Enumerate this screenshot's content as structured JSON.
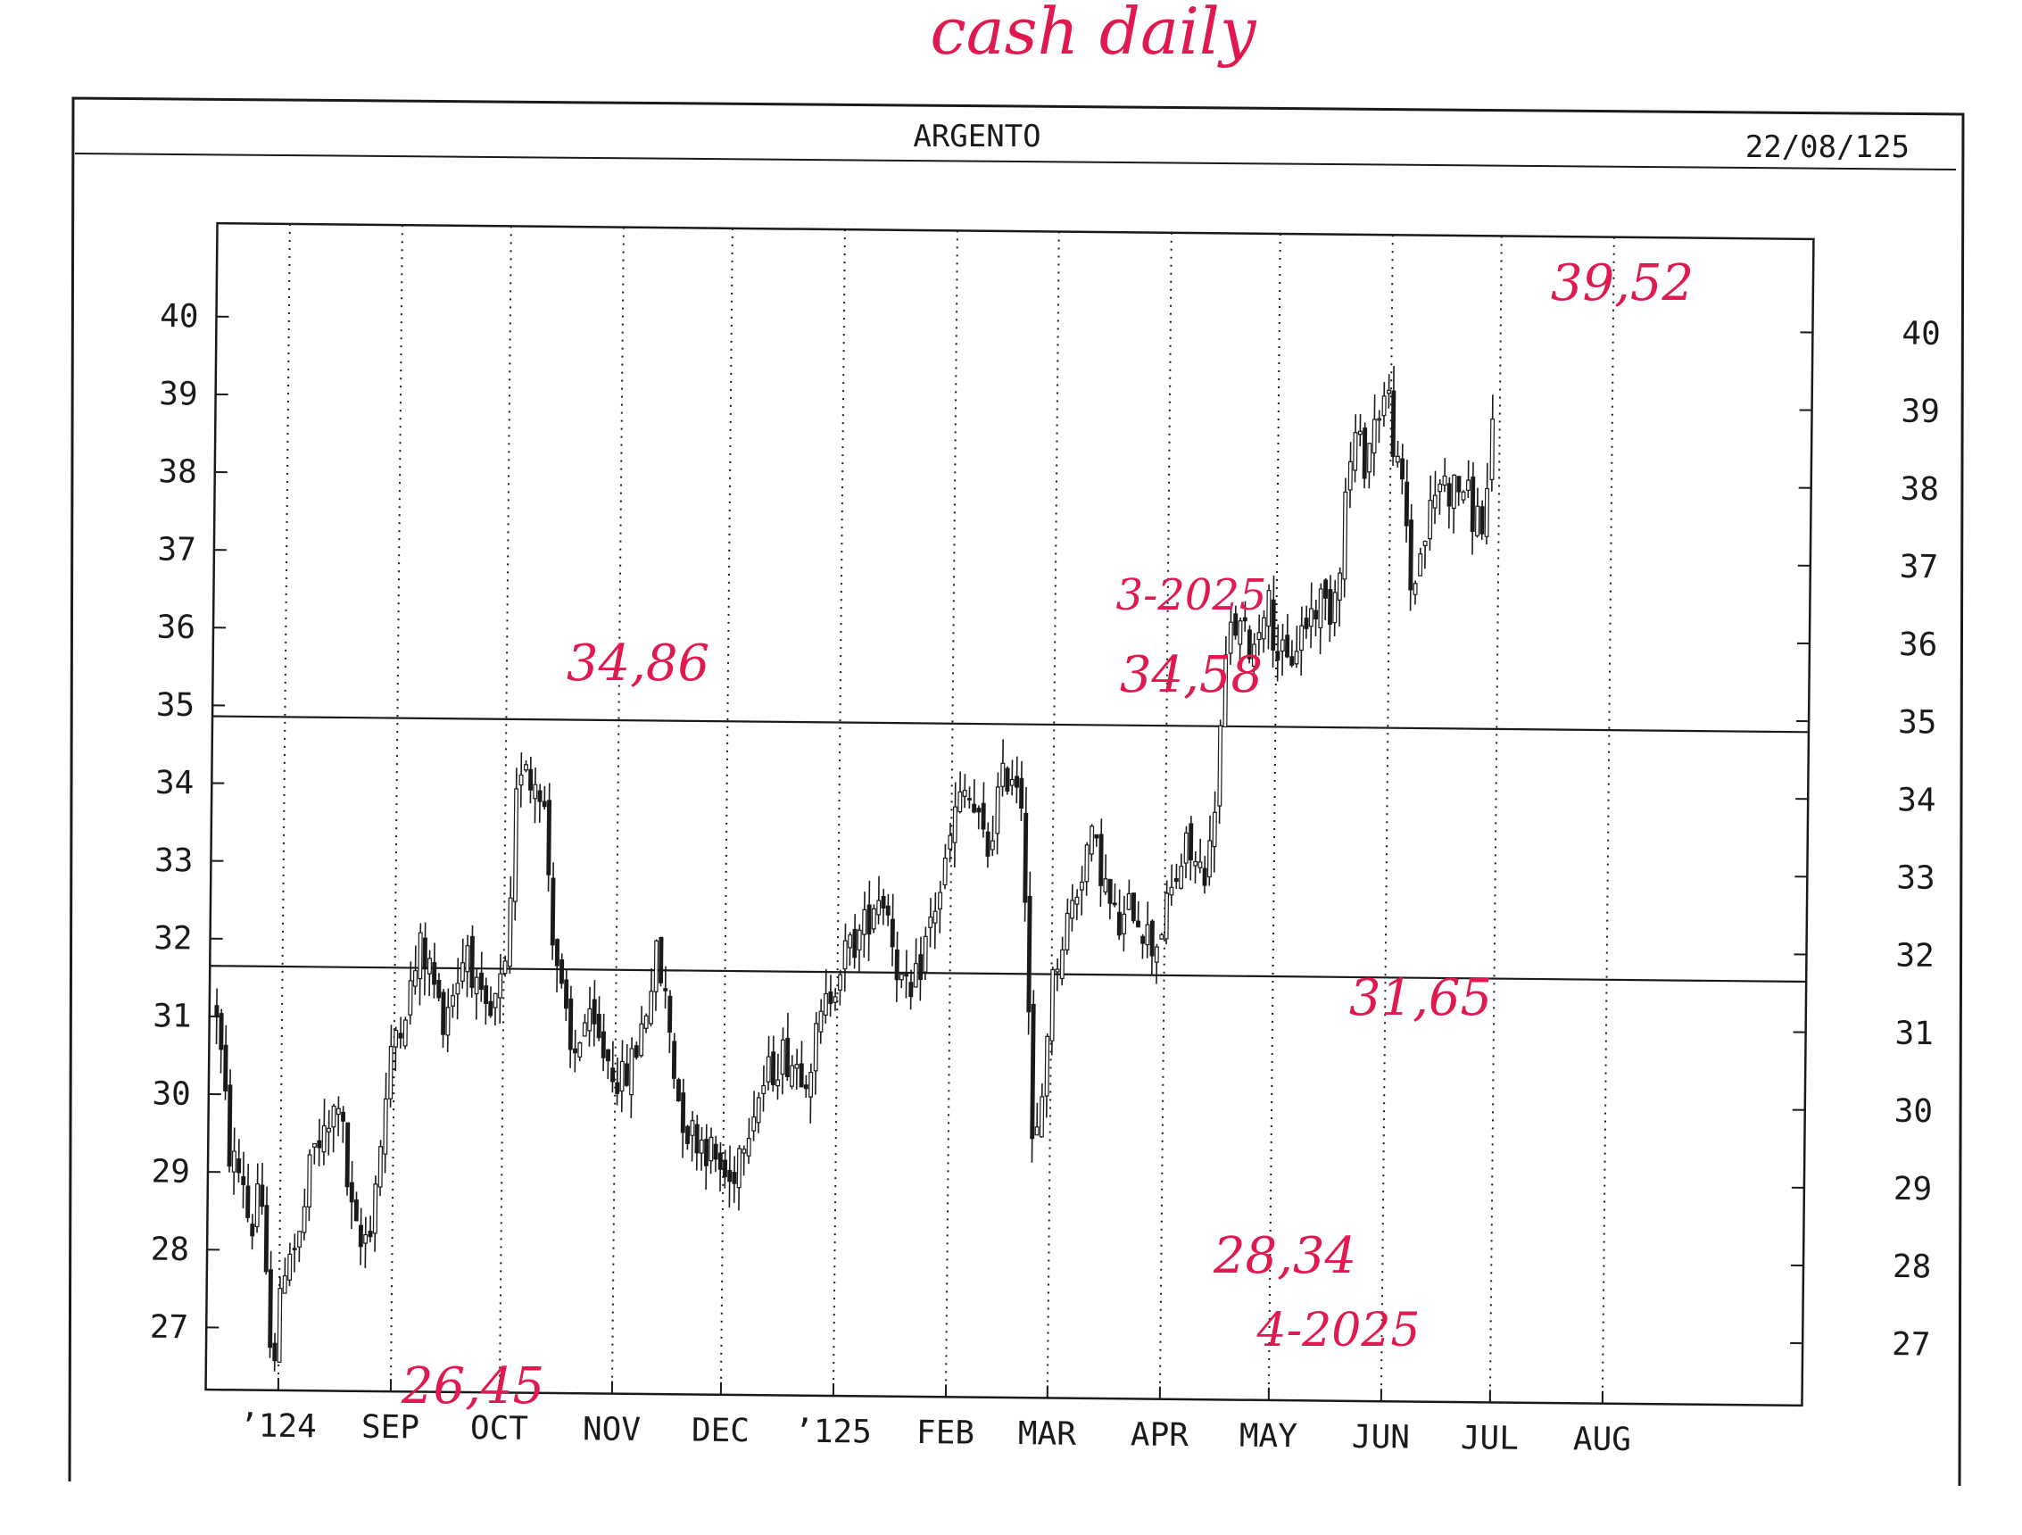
{
  "header": {
    "handwritten_title": "cash daily",
    "instrument": "ARGENTO",
    "date": "22/08/125"
  },
  "annotations": [
    {
      "text": "26,45"
    },
    {
      "text": "34,86"
    },
    {
      "text": "3-2025"
    },
    {
      "text": "34,58"
    },
    {
      "text": "31,65"
    },
    {
      "text": "28,34"
    },
    {
      "text": "4-2025"
    },
    {
      "text": "39,52"
    }
  ],
  "colors": {
    "ink": "#1a1a1a",
    "annotation": "#e0194f",
    "grid": "#333333"
  },
  "chart_data": {
    "type": "candlestick",
    "title": "ARGENTO",
    "subtitle": "cash daily",
    "date_label": "22/08/125",
    "xlabel": "",
    "ylabel": "",
    "ylim": [
      26.2,
      41.2
    ],
    "y_ticks_left": [
      "27",
      "28",
      "29",
      "30",
      "31",
      "32",
      "33",
      "34",
      "35",
      "36",
      "37",
      "38",
      "39",
      "40"
    ],
    "y_ticks_right": [
      "27",
      "28",
      "29",
      "30",
      "31",
      "32",
      "33",
      "34",
      "35",
      "36",
      "37",
      "38",
      "39",
      "40"
    ],
    "x_ticks": [
      {
        "label": "’124",
        "t": 0
      },
      {
        "label": "SEP",
        "t": 31
      },
      {
        "label": "OCT",
        "t": 61
      },
      {
        "label": "NOV",
        "t": 92
      },
      {
        "label": "DEC",
        "t": 122
      },
      {
        "label": "’125",
        "t": 153
      },
      {
        "label": "FEB",
        "t": 184
      },
      {
        "label": "MAR",
        "t": 212
      },
      {
        "label": "APR",
        "t": 243
      },
      {
        "label": "MAY",
        "t": 273
      },
      {
        "label": "JUN",
        "t": 304
      },
      {
        "label": "JUL",
        "t": 334
      },
      {
        "label": "AUG",
        "t": 365
      }
    ],
    "t_range": [
      -20,
      420
    ],
    "grid": "vertical-dotted",
    "horizontal_lines": [
      34.86,
      31.65
    ],
    "annotated_levels": [
      {
        "label": "26,45",
        "t": 28,
        "value": 26.45
      },
      {
        "label": "34,86",
        "t": 87,
        "value": 34.86
      },
      {
        "label": "34,58",
        "t": 238,
        "value": 34.58
      },
      {
        "label": "31,65",
        "t": 285,
        "value": 31.65
      },
      {
        "label": "28,34",
        "t": 247,
        "value": 28.34
      },
      {
        "label": "39,52",
        "t": 369,
        "value": 39.52
      }
    ],
    "price_path": [
      [
        -18,
        31.1
      ],
      [
        -14,
        29.2
      ],
      [
        -10,
        28.9
      ],
      [
        -8,
        28.1
      ],
      [
        -6,
        29.0
      ],
      [
        -3,
        27.1
      ],
      [
        -1,
        26.7
      ],
      [
        2,
        28.1
      ],
      [
        5,
        28.0
      ],
      [
        9,
        29.3
      ],
      [
        13,
        29.5
      ],
      [
        16,
        30.0
      ],
      [
        19,
        28.6
      ],
      [
        22,
        28.0
      ],
      [
        25,
        28.4
      ],
      [
        28,
        29.6
      ],
      [
        31,
        30.8
      ],
      [
        35,
        31.3
      ],
      [
        38,
        31.9
      ],
      [
        41,
        31.6
      ],
      [
        44,
        31.0
      ],
      [
        48,
        31.5
      ],
      [
        51,
        32.0
      ],
      [
        54,
        31.2
      ],
      [
        57,
        30.9
      ],
      [
        60,
        31.4
      ],
      [
        62,
        31.6
      ],
      [
        64,
        33.8
      ],
      [
        66,
        34.6
      ],
      [
        68,
        34.0
      ],
      [
        70,
        34.2
      ],
      [
        72,
        33.6
      ],
      [
        74,
        32.3
      ],
      [
        77,
        31.3
      ],
      [
        80,
        30.4
      ],
      [
        83,
        31.0
      ],
      [
        86,
        30.8
      ],
      [
        90,
        30.5
      ],
      [
        94,
        30.2
      ],
      [
        97,
        30.5
      ],
      [
        100,
        31.1
      ],
      [
        103,
        31.8
      ],
      [
        106,
        31.2
      ],
      [
        109,
        30.1
      ],
      [
        112,
        29.6
      ],
      [
        116,
        29.5
      ],
      [
        120,
        29.2
      ],
      [
        124,
        28.9
      ],
      [
        127,
        29.5
      ],
      [
        130,
        29.9
      ],
      [
        134,
        30.3
      ],
      [
        138,
        30.6
      ],
      [
        141,
        30.5
      ],
      [
        145,
        30.4
      ],
      [
        148,
        30.9
      ],
      [
        151,
        31.4
      ],
      [
        154,
        31.8
      ],
      [
        157,
        32.0
      ],
      [
        160,
        32.2
      ],
      [
        163,
        32.6
      ],
      [
        165,
        32.7
      ],
      [
        167,
        32.4
      ],
      [
        170,
        31.6
      ],
      [
        173,
        31.2
      ],
      [
        176,
        31.8
      ],
      [
        179,
        32.4
      ],
      [
        182,
        32.9
      ],
      [
        185,
        33.7
      ],
      [
        188,
        34.0
      ],
      [
        191,
        33.6
      ],
      [
        194,
        33.2
      ],
      [
        197,
        34.0
      ],
      [
        200,
        34.3
      ],
      [
        203,
        34.1
      ],
      [
        205,
        32.4
      ],
      [
        207,
        29.4
      ],
      [
        209,
        29.6
      ],
      [
        211,
        31.0
      ],
      [
        213,
        31.8
      ],
      [
        216,
        32.3
      ],
      [
        219,
        32.8
      ],
      [
        222,
        33.4
      ],
      [
        225,
        33.1
      ],
      [
        228,
        32.5
      ],
      [
        231,
        32.2
      ],
      [
        234,
        32.6
      ],
      [
        237,
        32.3
      ],
      [
        240,
        32.0
      ],
      [
        243,
        32.4
      ],
      [
        246,
        32.9
      ],
      [
        249,
        33.3
      ],
      [
        252,
        33.0
      ],
      [
        255,
        33.1
      ],
      [
        257,
        34.2
      ],
      [
        259,
        35.6
      ],
      [
        261,
        36.2
      ],
      [
        264,
        36.0
      ],
      [
        267,
        35.9
      ],
      [
        270,
        36.6
      ],
      [
        273,
        35.9
      ],
      [
        276,
        35.6
      ],
      [
        279,
        36.0
      ],
      [
        282,
        36.3
      ],
      [
        285,
        36.5
      ],
      [
        288,
        36.4
      ],
      [
        290,
        36.9
      ],
      [
        292,
        38.0
      ],
      [
        294,
        38.6
      ],
      [
        297,
        38.3
      ],
      [
        300,
        38.9
      ],
      [
        303,
        39.2
      ],
      [
        306,
        38.1
      ],
      [
        308,
        37.8
      ],
      [
        310,
        36.6
      ],
      [
        312,
        37.0
      ],
      [
        315,
        37.6
      ],
      [
        318,
        38.1
      ],
      [
        321,
        37.9
      ],
      [
        324,
        38.0
      ],
      [
        327,
        37.6
      ],
      [
        330,
        37.5
      ],
      [
        332,
        38.6
      ]
    ],
    "candles": {
      "count": 270,
      "t_start": -18,
      "t_end": 332,
      "approximate": true
    }
  }
}
